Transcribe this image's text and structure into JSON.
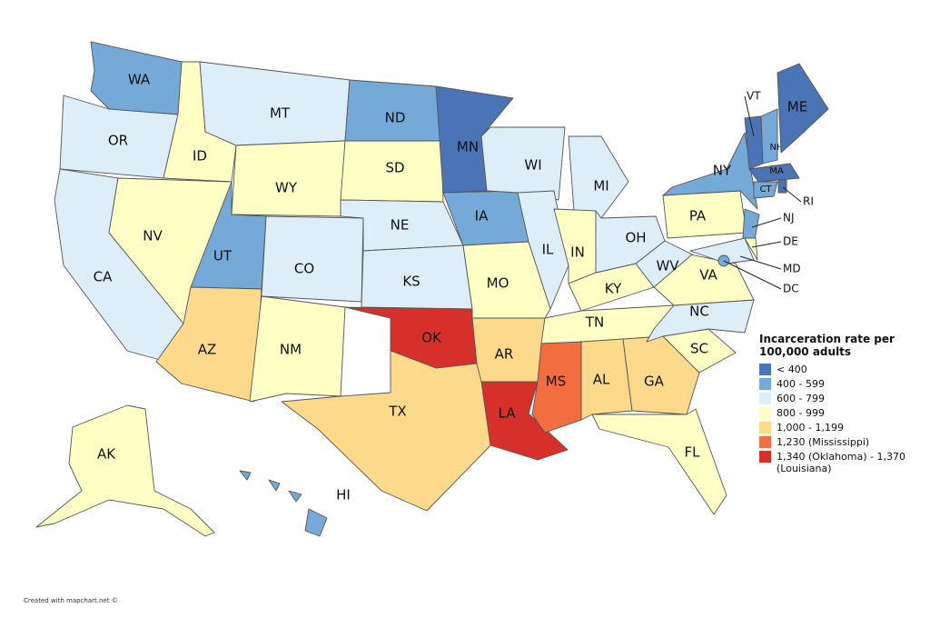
{
  "legend": {
    "title": "Incarceration rate per 100,000 adults",
    "items": [
      {
        "label": "< 400",
        "color": "#4a74b6"
      },
      {
        "label": "400 - 599",
        "color": "#74a9d8"
      },
      {
        "label": "600 - 799",
        "color": "#ddeef8"
      },
      {
        "label": "800 - 999",
        "color": "#ffffc5"
      },
      {
        "label": "1,000 - 1,199",
        "color": "#fdd98c"
      },
      {
        "label": "1,230 (Mississippi)",
        "color": "#f26d40"
      },
      {
        "label": "1,340 (Oklahoma) - 1,370 (Louisiana)",
        "color": "#d7302a"
      }
    ]
  },
  "states": [
    {
      "label": "WA",
      "class": 1
    },
    {
      "label": "OR",
      "class": 2
    },
    {
      "label": "CA",
      "class": 2
    },
    {
      "label": "ID",
      "class": 3
    },
    {
      "label": "NV",
      "class": 3
    },
    {
      "label": "MT",
      "class": 2
    },
    {
      "label": "WY",
      "class": 3
    },
    {
      "label": "UT",
      "class": 1
    },
    {
      "label": "AZ",
      "class": 4
    },
    {
      "label": "CO",
      "class": 2
    },
    {
      "label": "NM",
      "class": 3
    },
    {
      "label": "ND",
      "class": 1
    },
    {
      "label": "SD",
      "class": 3
    },
    {
      "label": "NE",
      "class": 2
    },
    {
      "label": "KS",
      "class": 2
    },
    {
      "label": "OK",
      "class": 6
    },
    {
      "label": "TX",
      "class": 4
    },
    {
      "label": "MN",
      "class": 0
    },
    {
      "label": "IA",
      "class": 1
    },
    {
      "label": "MO",
      "class": 3
    },
    {
      "label": "AR",
      "class": 4
    },
    {
      "label": "LA",
      "class": 6
    },
    {
      "label": "WI",
      "class": 2
    },
    {
      "label": "IL",
      "class": 2
    },
    {
      "label": "MI",
      "class": 2
    },
    {
      "label": "IN",
      "class": 3
    },
    {
      "label": "KY",
      "class": 3
    },
    {
      "label": "TN",
      "class": 3
    },
    {
      "label": "MS",
      "class": 5
    },
    {
      "label": "AL",
      "class": 4
    },
    {
      "label": "GA",
      "class": 4
    },
    {
      "label": "FL",
      "class": 3
    },
    {
      "label": "SC",
      "class": 3
    },
    {
      "label": "NC",
      "class": 2
    },
    {
      "label": "VA",
      "class": 3
    },
    {
      "label": "WV",
      "class": 2
    },
    {
      "label": "OH",
      "class": 2
    },
    {
      "label": "PA",
      "class": 3
    },
    {
      "label": "NY",
      "class": 1
    },
    {
      "label": "VT",
      "class": 0
    },
    {
      "label": "NH",
      "class": 1
    },
    {
      "label": "ME",
      "class": 0
    },
    {
      "label": "MA",
      "class": 0
    },
    {
      "label": "CT",
      "class": 1
    },
    {
      "label": "RI",
      "class": 0
    },
    {
      "label": "NJ",
      "class": 1
    },
    {
      "label": "DE",
      "class": 3
    },
    {
      "label": "MD",
      "class": 2
    },
    {
      "label": "DC",
      "class": 1
    },
    {
      "label": "AK",
      "class": 3
    },
    {
      "label": "HI",
      "class": 1
    }
  ],
  "credit": "Created with mapchart.net ©"
}
